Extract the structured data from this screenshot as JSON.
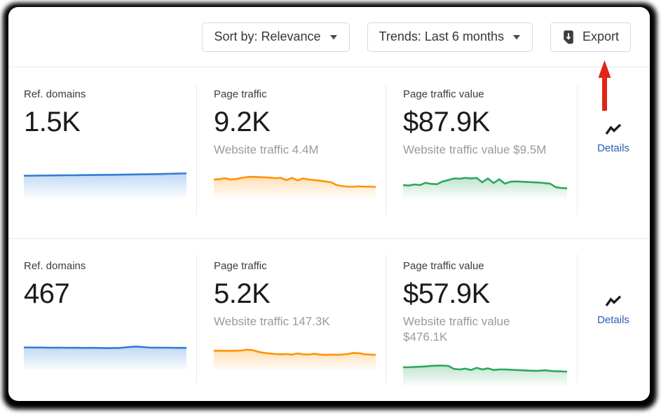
{
  "toolbar": {
    "sort_label": "Sort by: Relevance",
    "trends_label": "Trends: Last 6 months",
    "export_label": "Export"
  },
  "rows": [
    {
      "details_label": "Details",
      "metrics": [
        {
          "label": "Ref. domains",
          "value": "1.5K",
          "subtitle": "",
          "color": "#2f7ed8",
          "trend": [
            74,
            74,
            74.3,
            74.6,
            74.6,
            75,
            75,
            75.3,
            75.6,
            75.6,
            76,
            76.3,
            76.3,
            76.6,
            77,
            77,
            77.3,
            77.6,
            78,
            78.3,
            78.6,
            79,
            79.3,
            79.6,
            80,
            80.6,
            81,
            81.6,
            82,
            82.3
          ]
        },
        {
          "label": "Page traffic",
          "value": "9.2K",
          "subtitle": "Website traffic 4.4M",
          "color": "#ff9306",
          "trend": [
            60,
            61,
            65,
            60,
            62,
            66,
            69,
            70,
            69,
            68,
            67,
            65,
            66,
            58,
            66,
            57,
            64,
            60,
            58,
            56,
            53,
            50,
            40,
            36,
            34,
            34,
            35,
            34,
            34,
            33
          ]
        },
        {
          "label": "Page traffic value",
          "value": "$87.9K",
          "subtitle": "Website traffic value $9.5M",
          "color": "#2fa65c",
          "trend": [
            40,
            38,
            42,
            40,
            48,
            44,
            43,
            53,
            58,
            64,
            63,
            66,
            64,
            66,
            50,
            64,
            47,
            61,
            45,
            52,
            53,
            52,
            51,
            50,
            49,
            47,
            45,
            32,
            29,
            28
          ]
        }
      ]
    },
    {
      "details_label": "Details",
      "metrics": [
        {
          "label": "Ref. domains",
          "value": "467",
          "subtitle": "",
          "color": "#2f7ed8",
          "trend": [
            74,
            74,
            73.6,
            74,
            73.3,
            73,
            73.3,
            73,
            72.6,
            73,
            72.6,
            72.3,
            72.6,
            72.3,
            72,
            71.6,
            72,
            72.3,
            74,
            76,
            77,
            76,
            74,
            73,
            73.3,
            73,
            73,
            72.6,
            72.6,
            72.3
          ]
        },
        {
          "label": "Page traffic",
          "value": "5.2K",
          "subtitle": "Website traffic 147.3K",
          "color": "#ff9306",
          "trend": [
            62,
            62,
            61.5,
            62,
            62,
            63,
            66,
            64,
            58,
            54,
            52,
            50,
            49,
            50,
            48,
            52,
            49,
            48,
            51,
            48,
            47,
            48,
            47,
            48,
            50,
            54,
            53,
            49,
            48,
            47
          ]
        },
        {
          "label": "Page traffic value",
          "value": "$57.9K",
          "subtitle": "Website traffic value\n$476.1K",
          "color": "#2fa65c",
          "trend": [
            58,
            58,
            59,
            60,
            61,
            63,
            64,
            64,
            63,
            52,
            50,
            53,
            48,
            56,
            50,
            54,
            48,
            50,
            50,
            49,
            48,
            47,
            46,
            45,
            45,
            47,
            45,
            43,
            43,
            42
          ]
        }
      ]
    }
  ],
  "annotation": {
    "arrow_color": "#e02418"
  },
  "colors": {
    "link": "#2a5db5",
    "divider": "#e7e7e7",
    "label_text": "#3c3c3c",
    "number_text": "#1b1b1b",
    "subtitle_text": "#9a9a9a",
    "button_border": "#d8d8d8",
    "button_text": "#363636",
    "icon_dark": "#3c3c3c",
    "spark_blue": "#2f7ed8",
    "spark_orange": "#ff9306",
    "spark_green": "#2fa65c"
  }
}
